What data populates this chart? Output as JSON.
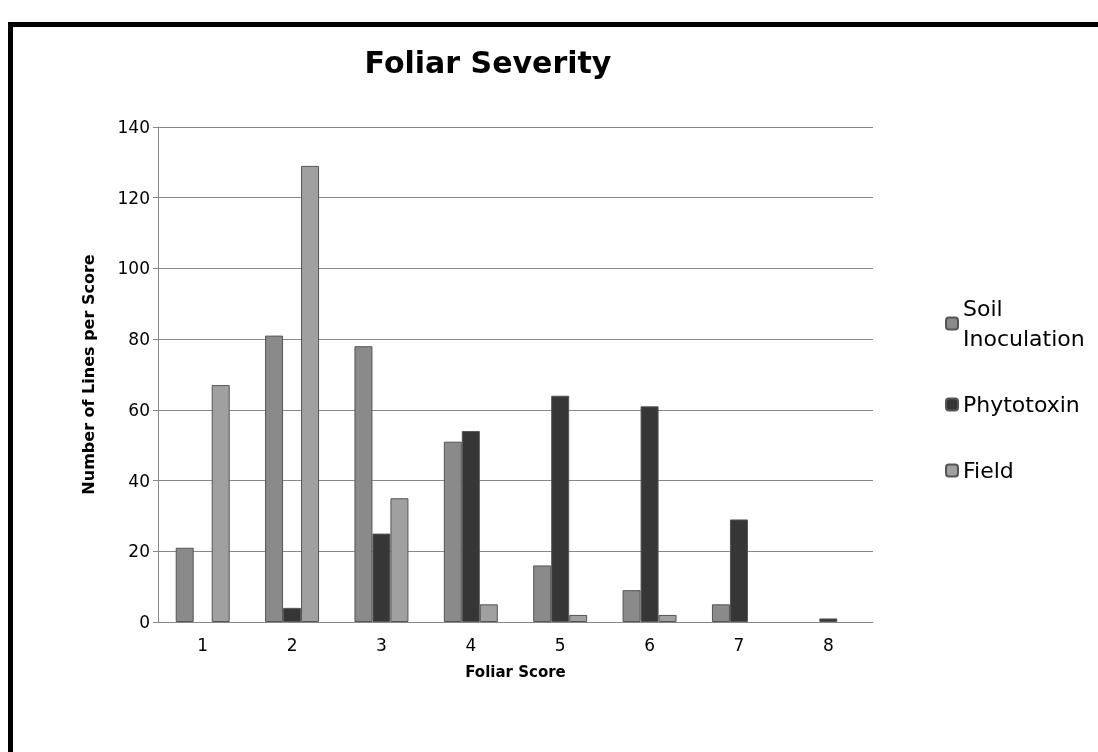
{
  "chart_data": {
    "type": "bar",
    "title": "Foliar Severity",
    "xlabel": "Foliar Score",
    "ylabel": "Number of Lines per Score",
    "categories": [
      "1",
      "2",
      "3",
      "4",
      "5",
      "6",
      "7",
      "8"
    ],
    "series": [
      {
        "name": "Soil Inoculation",
        "color": "#8a8a8a",
        "values": [
          21,
          81,
          78,
          51,
          16,
          9,
          5,
          null
        ]
      },
      {
        "name": "Phytotoxin",
        "color": "#363636",
        "values": [
          null,
          4,
          25,
          54,
          64,
          61,
          29,
          1
        ]
      },
      {
        "name": "Field",
        "color": "#a0a0a0",
        "values": [
          67,
          129,
          35,
          5,
          2,
          2,
          null,
          null
        ]
      }
    ],
    "ylim": [
      0,
      140
    ],
    "yticks": [
      0,
      20,
      40,
      60,
      80,
      100,
      120,
      140
    ],
    "grid": "y",
    "legend": "right"
  }
}
